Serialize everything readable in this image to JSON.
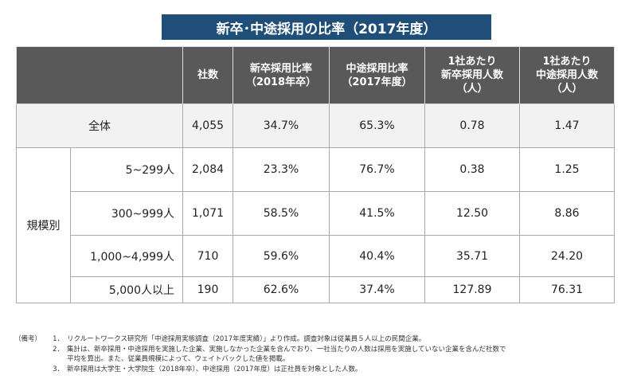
{
  "title": "新卒･中途採用の比率（2017年度）",
  "table": {
    "header": [
      [
        "社数"
      ],
      [
        "新卒採用比率",
        "（2018年卒）"
      ],
      [
        "中途採用比率",
        "（2017年度）"
      ],
      [
        "1社あたり",
        "新卒採用人数",
        "（人）"
      ],
      [
        "1社あたり",
        "中途採用人数",
        "（人）"
      ]
    ],
    "total": {
      "label": "全体",
      "cells": [
        "4,055",
        "34.7%",
        "65.3%",
        "0.78",
        "1.47"
      ]
    },
    "group_label": "規模別",
    "rows": [
      {
        "label": "5~299人",
        "cells": [
          "2,084",
          "23.3%",
          "76.7%",
          "0.38",
          "1.25"
        ]
      },
      {
        "label": "300~999人",
        "cells": [
          "1,071",
          "58.5%",
          "41.5%",
          "12.50",
          "8.86"
        ]
      },
      {
        "label": "1,000~4,999人",
        "cells": [
          "710",
          "59.6%",
          "40.4%",
          "35.71",
          "24.20"
        ]
      },
      {
        "label": "5,000人以上",
        "cells": [
          "190",
          "62.6%",
          "37.4%",
          "127.89",
          "76.31"
        ]
      }
    ]
  },
  "notes": {
    "prefix": "（備考）",
    "items": [
      {
        "num": "1．",
        "lines": [
          "リクルートワークス研究所「中途採用実態調査（2017年度実績）」より作成。調査対象は従業員５人以上の民間企業。"
        ]
      },
      {
        "num": "2．",
        "lines": [
          "集計は、新卒採用・中途採用を実施した企業、実施しなかった企業を含んでおり、一社当たりの人数は採用を実施していない企業を含んだ社数で",
          "平均を算出。また、従業員規模によって、ウェイトバックした値を掲載。"
        ]
      },
      {
        "num": "3．",
        "lines": [
          "新卒採用は大学生・大学院生（2018年卒）、中途採用（2017年度）は正社員を対象とした人数。"
        ]
      }
    ]
  }
}
